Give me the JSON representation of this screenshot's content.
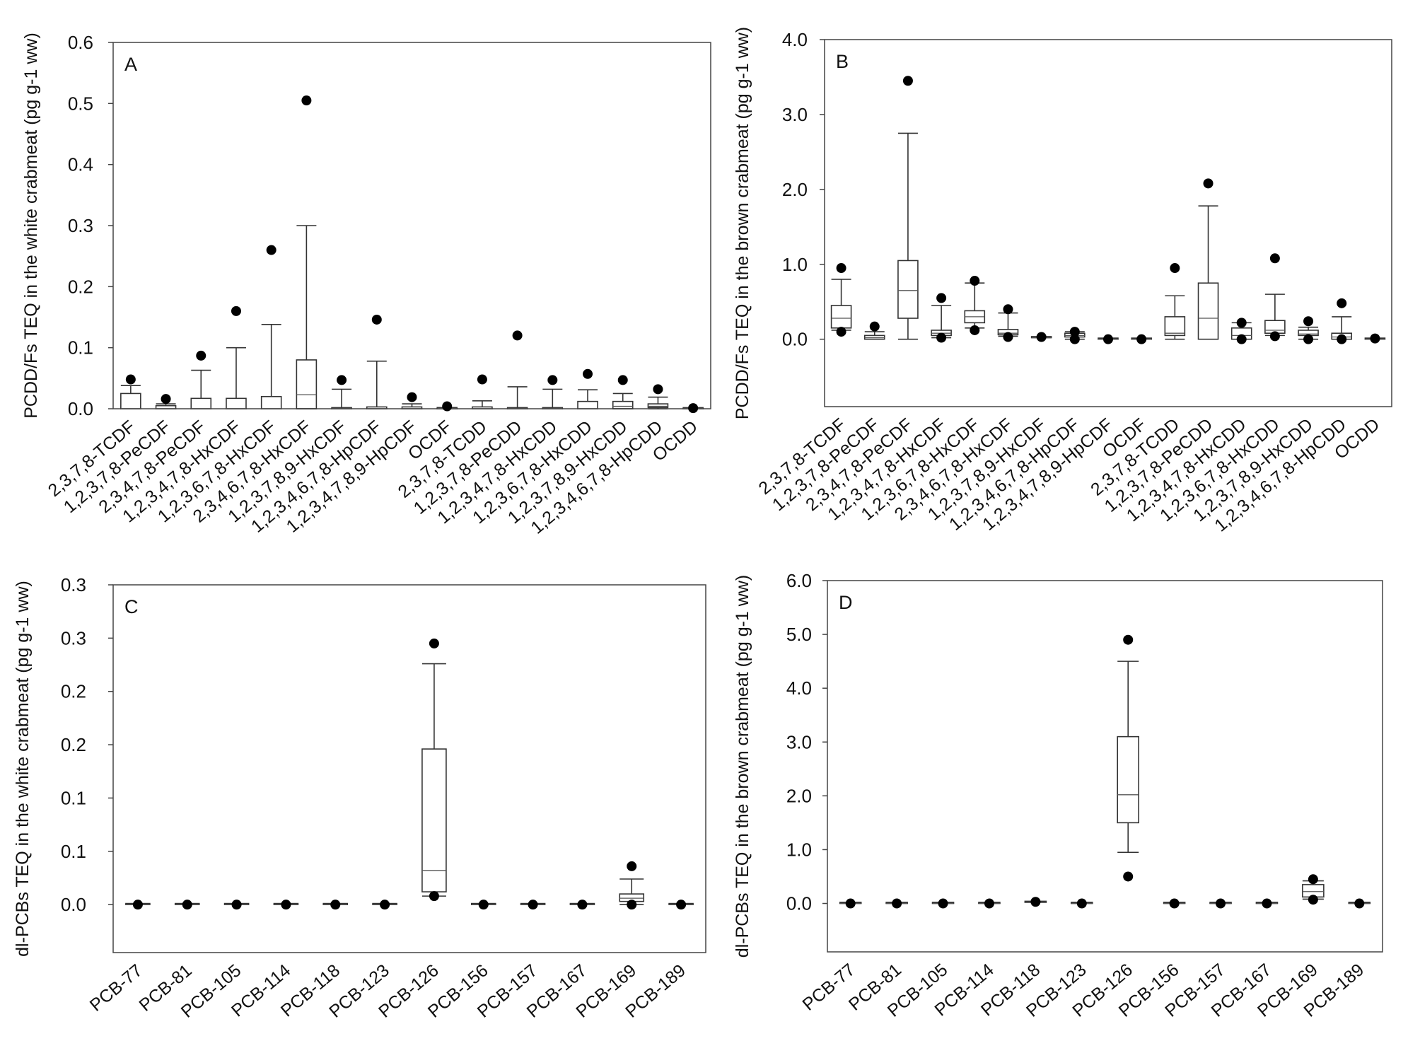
{
  "chart_data": [
    {
      "panel": "A",
      "type": "box",
      "ylabel": "PCDD/Fs TEQ in the white crabmeat (pg g-1 ww)",
      "ylim": [
        0.0,
        0.6
      ],
      "yticks": [
        0.0,
        0.1,
        0.2,
        0.3,
        0.4,
        0.5,
        0.6
      ],
      "ytick_labels": [
        "0.0",
        "0.1",
        "0.2",
        "0.3",
        "0.4",
        "0.5",
        "0.6"
      ],
      "categories": [
        "2,3,7,8-TCDF",
        "1,2,3,7,8-PeCDF",
        "2,3,4,7,8-PeCDF",
        "1,2,3,4,7,8-HxCDF",
        "1,2,3,6,7,8-HxCDF",
        "2,3,4,6,7,8-HxCDF",
        "1,2,3,7,8,9-HxCDF",
        "1,2,3,4,6,7,8-HpCDF",
        "1,2,3,4,7,8,9-HpCDF",
        "OCDF",
        "2,3,7,8-TCDD",
        "1,2,3,7,8-PeCDD",
        "1,2,3,4,7,8-HxCDD",
        "1,2,3,6,7,8-HxCDD",
        "1,2,3,7,8,9-HxCDD",
        "1,2,3,4,6,7,8-HpCDD",
        "OCDD"
      ],
      "boxes": [
        {
          "whislo": 0.0,
          "q1": 0.0,
          "med": 0.0,
          "q3": 0.025,
          "whishi": 0.038,
          "outliers": [
            0.048
          ]
        },
        {
          "whislo": 0.0,
          "q1": 0.0,
          "med": 0.0,
          "q3": 0.005,
          "whishi": 0.008,
          "outliers": [
            0.016
          ]
        },
        {
          "whislo": 0.0,
          "q1": 0.0,
          "med": 0.0,
          "q3": 0.017,
          "whishi": 0.063,
          "outliers": [
            0.087
          ]
        },
        {
          "whislo": 0.0,
          "q1": 0.0,
          "med": 0.0,
          "q3": 0.017,
          "whishi": 0.1,
          "outliers": [
            0.16
          ]
        },
        {
          "whislo": 0.0,
          "q1": 0.0,
          "med": 0.0,
          "q3": 0.02,
          "whishi": 0.138,
          "outliers": [
            0.26
          ]
        },
        {
          "whislo": 0.0,
          "q1": 0.0,
          "med": 0.023,
          "q3": 0.08,
          "whishi": 0.3,
          "outliers": [
            0.505
          ]
        },
        {
          "whislo": 0.0,
          "q1": 0.0,
          "med": 0.0,
          "q3": 0.0,
          "whishi": 0.032,
          "outliers": [
            0.047
          ]
        },
        {
          "whislo": 0.0,
          "q1": 0.0,
          "med": 0.0,
          "q3": 0.003,
          "whishi": 0.078,
          "outliers": [
            0.146
          ]
        },
        {
          "whislo": 0.0,
          "q1": 0.0,
          "med": 0.0,
          "q3": 0.003,
          "whishi": 0.008,
          "outliers": [
            0.019
          ]
        },
        {
          "whislo": 0.0,
          "q1": 0.0,
          "med": 0.0,
          "q3": 0.002,
          "whishi": 0.002,
          "outliers": [
            0.004
          ]
        },
        {
          "whislo": 0.0,
          "q1": 0.0,
          "med": 0.0,
          "q3": 0.003,
          "whishi": 0.013,
          "outliers": [
            0.048
          ]
        },
        {
          "whislo": 0.0,
          "q1": 0.0,
          "med": 0.0,
          "q3": 0.0,
          "whishi": 0.036,
          "outliers": [
            0.12
          ]
        },
        {
          "whislo": 0.0,
          "q1": 0.0,
          "med": 0.0,
          "q3": 0.0,
          "whishi": 0.032,
          "outliers": [
            0.047
          ]
        },
        {
          "whislo": 0.0,
          "q1": 0.0,
          "med": 0.0,
          "q3": 0.012,
          "whishi": 0.031,
          "outliers": [
            0.057
          ]
        },
        {
          "whislo": 0.0,
          "q1": 0.0,
          "med": 0.004,
          "q3": 0.012,
          "whishi": 0.025,
          "outliers": [
            0.047
          ]
        },
        {
          "whislo": 0.0,
          "q1": 0.002,
          "med": 0.004,
          "q3": 0.008,
          "whishi": 0.019,
          "outliers": [
            0.032
          ]
        },
        {
          "whislo": 0.0,
          "q1": 0.0,
          "med": 0.0,
          "q3": 0.001,
          "whishi": 0.001,
          "outliers": [
            0.001
          ]
        }
      ]
    },
    {
      "panel": "B",
      "type": "box",
      "ylabel": "PCDD/Fs TEQ in the brown crabmeat (pg g-1 ww)",
      "ylim": [
        -0.9,
        4.0
      ],
      "yticks": [
        0.0,
        1.0,
        2.0,
        3.0,
        4.0
      ],
      "ytick_labels": [
        "0.0",
        "1.0",
        "2.0",
        "3.0",
        "4.0"
      ],
      "categories": [
        "2,3,7,8-TCDF",
        "1,2,3,7,8-PeCDF",
        "2,3,4,7,8-PeCDF",
        "1,2,3,4,7,8-HxCDF",
        "1,2,3,6,7,8-HxCDF",
        "2,3,4,6,7,8-HxCDF",
        "1,2,3,7,8,9-HxCDF",
        "1,2,3,4,6,7,8-HpCDF",
        "1,2,3,4,7,8,9-HpCDF",
        "OCDF",
        "2,3,7,8-TCDD",
        "1,2,3,7,8-PeCDD",
        "1,2,3,4,7,8-HxCDD",
        "1,2,3,6,7,8-HxCDD",
        "1,2,3,7,8,9-HxCDD",
        "1,2,3,4,6,7,8-HpCDD",
        "OCDD"
      ],
      "boxes": [
        {
          "whislo": 0.12,
          "q1": 0.15,
          "med": 0.28,
          "q3": 0.45,
          "whishi": 0.8,
          "outliers": [
            0.95,
            0.1
          ]
        },
        {
          "whislo": 0.0,
          "q1": 0.0,
          "med": 0.02,
          "q3": 0.05,
          "whishi": 0.1,
          "outliers": [
            0.17
          ]
        },
        {
          "whislo": 0.0,
          "q1": 0.28,
          "med": 0.65,
          "q3": 1.05,
          "whishi": 2.75,
          "outliers": [
            3.45
          ]
        },
        {
          "whislo": 0.02,
          "q1": 0.05,
          "med": 0.08,
          "q3": 0.12,
          "whishi": 0.45,
          "outliers": [
            0.55,
            0.02
          ]
        },
        {
          "whislo": 0.15,
          "q1": 0.22,
          "med": 0.3,
          "q3": 0.38,
          "whishi": 0.75,
          "outliers": [
            0.78,
            0.12
          ]
        },
        {
          "whislo": 0.04,
          "q1": 0.06,
          "med": 0.08,
          "q3": 0.13,
          "whishi": 0.35,
          "outliers": [
            0.4,
            0.03
          ]
        },
        {
          "whislo": 0.02,
          "q1": 0.02,
          "med": 0.02,
          "q3": 0.03,
          "whishi": 0.03,
          "outliers": [
            0.03
          ]
        },
        {
          "whislo": 0.0,
          "q1": 0.03,
          "med": 0.05,
          "q3": 0.08,
          "whishi": 0.1,
          "outliers": [
            0.1,
            0.0
          ]
        },
        {
          "whislo": 0.0,
          "q1": 0.0,
          "med": 0.0,
          "q3": 0.0,
          "whishi": 0.0,
          "outliers": [
            0.0
          ]
        },
        {
          "whislo": 0.0,
          "q1": 0.0,
          "med": 0.0,
          "q3": 0.0,
          "whishi": 0.0,
          "outliers": [
            0.0
          ]
        },
        {
          "whislo": 0.0,
          "q1": 0.05,
          "med": 0.08,
          "q3": 0.3,
          "whishi": 0.58,
          "outliers": [
            0.95
          ]
        },
        {
          "whislo": 0.0,
          "q1": 0.0,
          "med": 0.28,
          "q3": 0.75,
          "whishi": 1.78,
          "outliers": [
            2.08
          ]
        },
        {
          "whislo": 0.0,
          "q1": 0.0,
          "med": 0.05,
          "q3": 0.15,
          "whishi": 0.22,
          "outliers": [
            0.22,
            0.0
          ]
        },
        {
          "whislo": 0.05,
          "q1": 0.08,
          "med": 0.12,
          "q3": 0.25,
          "whishi": 0.6,
          "outliers": [
            1.08,
            0.04
          ]
        },
        {
          "whislo": 0.0,
          "q1": 0.05,
          "med": 0.07,
          "q3": 0.12,
          "whishi": 0.16,
          "outliers": [
            0.24,
            0.0
          ]
        },
        {
          "whislo": 0.0,
          "q1": 0.0,
          "med": 0.03,
          "q3": 0.08,
          "whishi": 0.3,
          "outliers": [
            0.48,
            0.0
          ]
        },
        {
          "whislo": 0.0,
          "q1": 0.0,
          "med": 0.0,
          "q3": 0.01,
          "whishi": 0.01,
          "outliers": [
            0.01
          ]
        }
      ]
    },
    {
      "panel": "C",
      "type": "box",
      "ylabel": "dl-PCBs TEQ in the white crabmeat (pg g-1 ww)",
      "ylim": [
        -0.045,
        0.3
      ],
      "yticks": [
        0.0,
        0.05,
        0.1,
        0.15,
        0.2,
        0.25,
        0.3
      ],
      "ytick_labels": [
        "0.0",
        "0.1",
        "0.1",
        "0.2",
        "0.2",
        "0.3",
        "0.3"
      ],
      "categories": [
        "PCB-77",
        "PCB-81",
        "PCB-105",
        "PCB-114",
        "PCB-118",
        "PCB-123",
        "PCB-126",
        "PCB-156",
        "PCB-157",
        "PCB-167",
        "PCB-169",
        "PCB-189"
      ],
      "boxes": [
        {
          "whislo": 0.0,
          "q1": 0.0,
          "med": 0.0,
          "q3": 0.0,
          "whishi": 0.0,
          "outliers": [
            0.0
          ]
        },
        {
          "whislo": 0.0,
          "q1": 0.0,
          "med": 0.0,
          "q3": 0.0,
          "whishi": 0.0,
          "outliers": [
            0.0
          ]
        },
        {
          "whislo": 0.0,
          "q1": 0.0,
          "med": 0.0,
          "q3": 0.0,
          "whishi": 0.0,
          "outliers": [
            0.0
          ]
        },
        {
          "whislo": 0.0,
          "q1": 0.0,
          "med": 0.0,
          "q3": 0.0,
          "whishi": 0.0,
          "outliers": [
            0.0
          ]
        },
        {
          "whislo": 0.0,
          "q1": 0.0,
          "med": 0.0,
          "q3": 0.0,
          "whishi": 0.0,
          "outliers": [
            0.0
          ]
        },
        {
          "whislo": 0.0,
          "q1": 0.0,
          "med": 0.0,
          "q3": 0.0,
          "whishi": 0.0,
          "outliers": [
            0.0
          ]
        },
        {
          "whislo": 0.008,
          "q1": 0.012,
          "med": 0.032,
          "q3": 0.146,
          "whishi": 0.226,
          "outliers": [
            0.245,
            0.008
          ]
        },
        {
          "whislo": 0.0,
          "q1": 0.0,
          "med": 0.0,
          "q3": 0.0,
          "whishi": 0.0,
          "outliers": [
            0.0
          ]
        },
        {
          "whislo": 0.0,
          "q1": 0.0,
          "med": 0.0,
          "q3": 0.0,
          "whishi": 0.0,
          "outliers": [
            0.0
          ]
        },
        {
          "whislo": 0.0,
          "q1": 0.0,
          "med": 0.0,
          "q3": 0.0,
          "whishi": 0.0,
          "outliers": [
            0.0
          ]
        },
        {
          "whislo": 0.0,
          "q1": 0.003,
          "med": 0.006,
          "q3": 0.01,
          "whishi": 0.024,
          "outliers": [
            0.036,
            0.0
          ]
        },
        {
          "whislo": 0.0,
          "q1": 0.0,
          "med": 0.0,
          "q3": 0.0,
          "whishi": 0.0,
          "outliers": [
            0.0
          ]
        }
      ]
    },
    {
      "panel": "D",
      "type": "box",
      "ylabel": "dl-PCBs TEQ in the brown crabmeat (pg g-1 ww)",
      "ylim": [
        -0.9,
        6.0
      ],
      "yticks": [
        0.0,
        1.0,
        2.0,
        3.0,
        4.0,
        5.0,
        6.0
      ],
      "ytick_labels": [
        "0.0",
        "1.0",
        "2.0",
        "3.0",
        "4.0",
        "5.0",
        "6.0"
      ],
      "categories": [
        "PCB-77",
        "PCB-81",
        "PCB-105",
        "PCB-114",
        "PCB-118",
        "PCB-123",
        "PCB-126",
        "PCB-156",
        "PCB-157",
        "PCB-167",
        "PCB-169",
        "PCB-189"
      ],
      "boxes": [
        {
          "whislo": 0.0,
          "q1": 0.0,
          "med": 0.0,
          "q3": 0.0,
          "whishi": 0.0,
          "outliers": [
            0.0
          ]
        },
        {
          "whislo": 0.0,
          "q1": 0.0,
          "med": 0.0,
          "q3": 0.0,
          "whishi": 0.0,
          "outliers": [
            0.0
          ]
        },
        {
          "whislo": 0.0,
          "q1": 0.0,
          "med": 0.0,
          "q3": 0.0,
          "whishi": 0.0,
          "outliers": [
            0.0
          ]
        },
        {
          "whislo": 0.0,
          "q1": 0.0,
          "med": 0.0,
          "q3": 0.0,
          "whishi": 0.0,
          "outliers": [
            0.0
          ]
        },
        {
          "whislo": 0.02,
          "q1": 0.02,
          "med": 0.02,
          "q3": 0.03,
          "whishi": 0.03,
          "outliers": [
            0.03
          ]
        },
        {
          "whislo": 0.0,
          "q1": 0.0,
          "med": 0.0,
          "q3": 0.0,
          "whishi": 0.0,
          "outliers": [
            0.0
          ]
        },
        {
          "whislo": 0.95,
          "q1": 1.5,
          "med": 2.02,
          "q3": 3.1,
          "whishi": 4.5,
          "outliers": [
            4.9,
            0.5
          ]
        },
        {
          "whislo": 0.0,
          "q1": 0.0,
          "med": 0.0,
          "q3": 0.0,
          "whishi": 0.0,
          "outliers": [
            0.0
          ]
        },
        {
          "whislo": 0.0,
          "q1": 0.0,
          "med": 0.0,
          "q3": 0.0,
          "whishi": 0.0,
          "outliers": [
            0.0
          ]
        },
        {
          "whislo": 0.0,
          "q1": 0.0,
          "med": 0.0,
          "q3": 0.0,
          "whishi": 0.0,
          "outliers": [
            0.0
          ]
        },
        {
          "whislo": 0.08,
          "q1": 0.12,
          "med": 0.22,
          "q3": 0.35,
          "whishi": 0.42,
          "outliers": [
            0.45,
            0.07
          ]
        },
        {
          "whislo": 0.0,
          "q1": 0.0,
          "med": 0.0,
          "q3": 0.0,
          "whishi": 0.0,
          "outliers": [
            0.0
          ]
        }
      ]
    }
  ]
}
